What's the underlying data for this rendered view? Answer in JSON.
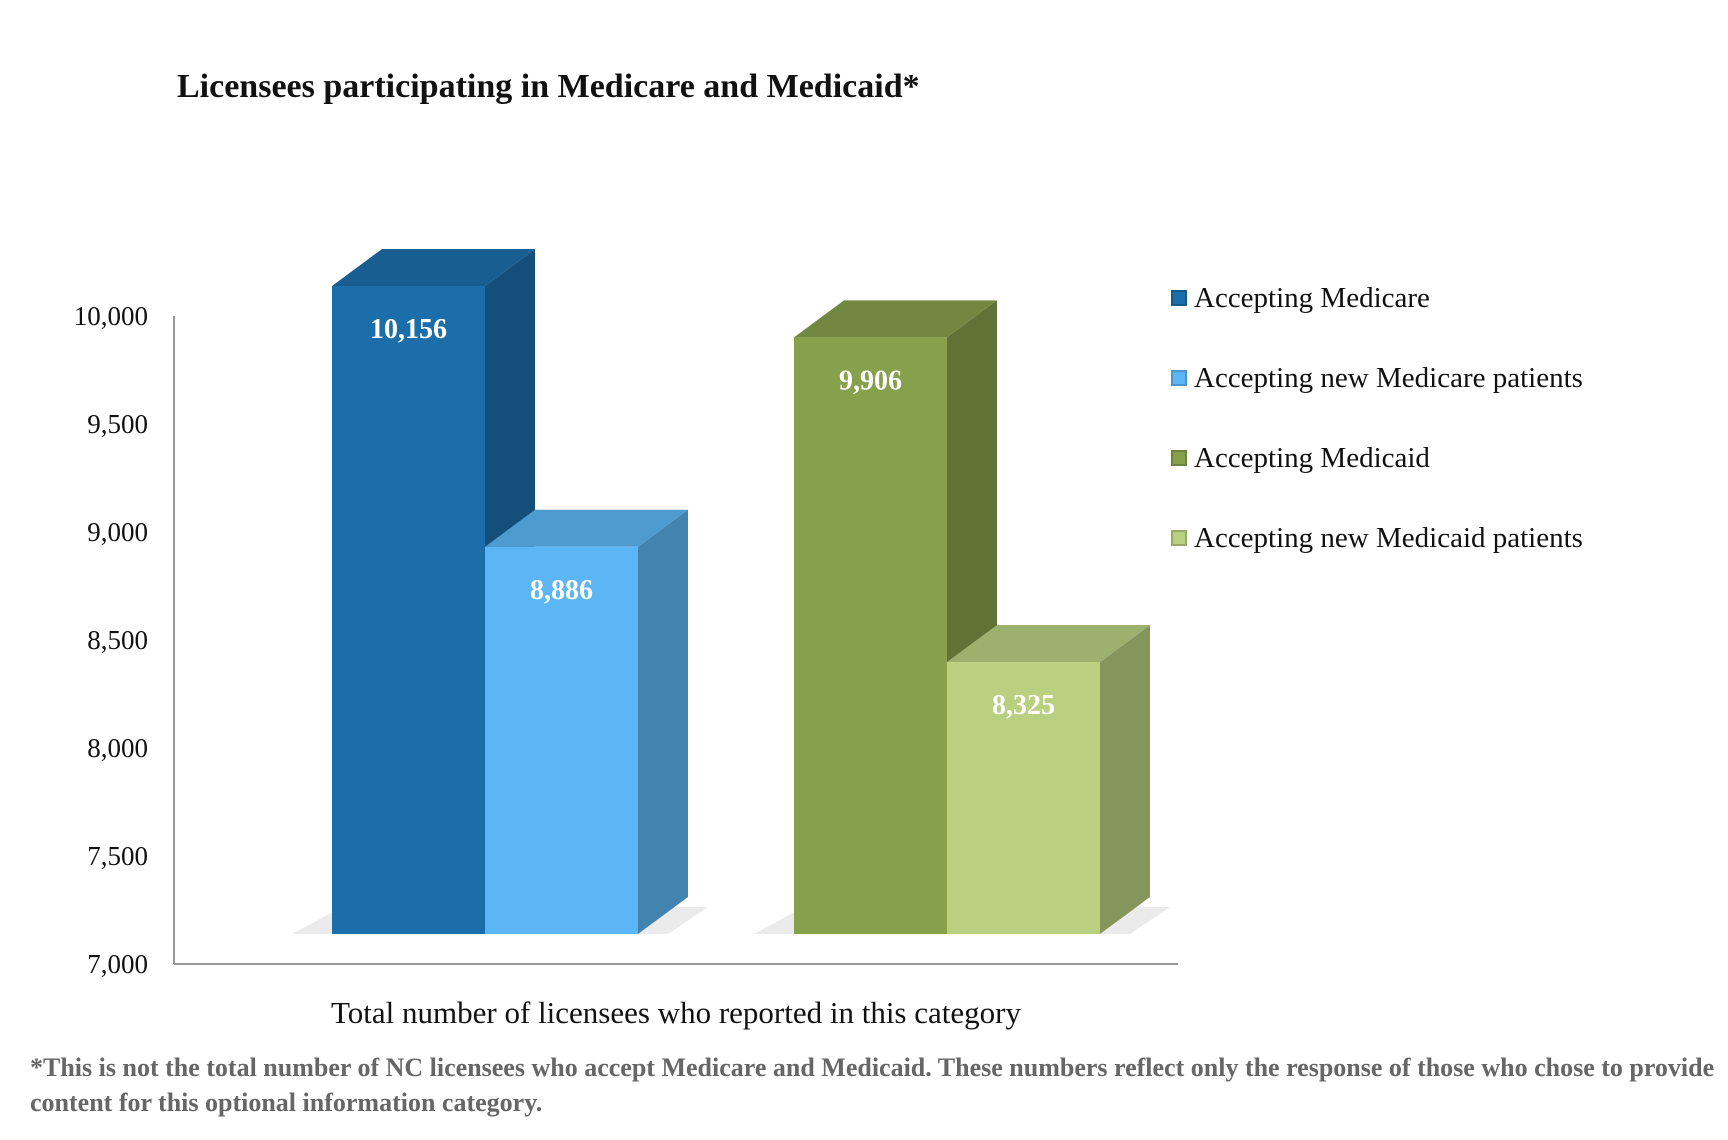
{
  "chart_data": {
    "type": "bar",
    "title": "Licensees participating in Medicare and Medicaid*",
    "xlabel": "Total number of licensees who reported in this category",
    "ylabel": "",
    "ylim": [
      7000,
      10000
    ],
    "yticks": [
      "10,000",
      "9,500",
      "9,000",
      "8,500",
      "8,000",
      "7,500",
      "7,000"
    ],
    "ytick_values": [
      10000,
      9500,
      9000,
      8500,
      8000,
      7500,
      7000
    ],
    "categories": [
      "Total number of licensees who reported in this category"
    ],
    "series": [
      {
        "name": "Accepting Medicare",
        "values": [
          10156
        ],
        "label": "10,156",
        "color": "#1c6eab"
      },
      {
        "name": "Accepting new Medicare patients",
        "values": [
          8886
        ],
        "label": "8,886",
        "color": "#5cb6f5"
      },
      {
        "name": "Accepting Medicaid",
        "values": [
          9906
        ],
        "label": "9,906",
        "color": "#86a04b"
      },
      {
        "name": "Accepting new Medicaid patients",
        "values": [
          8325
        ],
        "label": "8,325",
        "color": "#b9d081"
      }
    ],
    "legend_position": "right",
    "grid": false,
    "style": "3d-column"
  },
  "footnote": "*This is not the total number of NC licensees who accept Medicare and Medicaid. These numbers reflect only the response of those who chose to provide content for this optional information category."
}
